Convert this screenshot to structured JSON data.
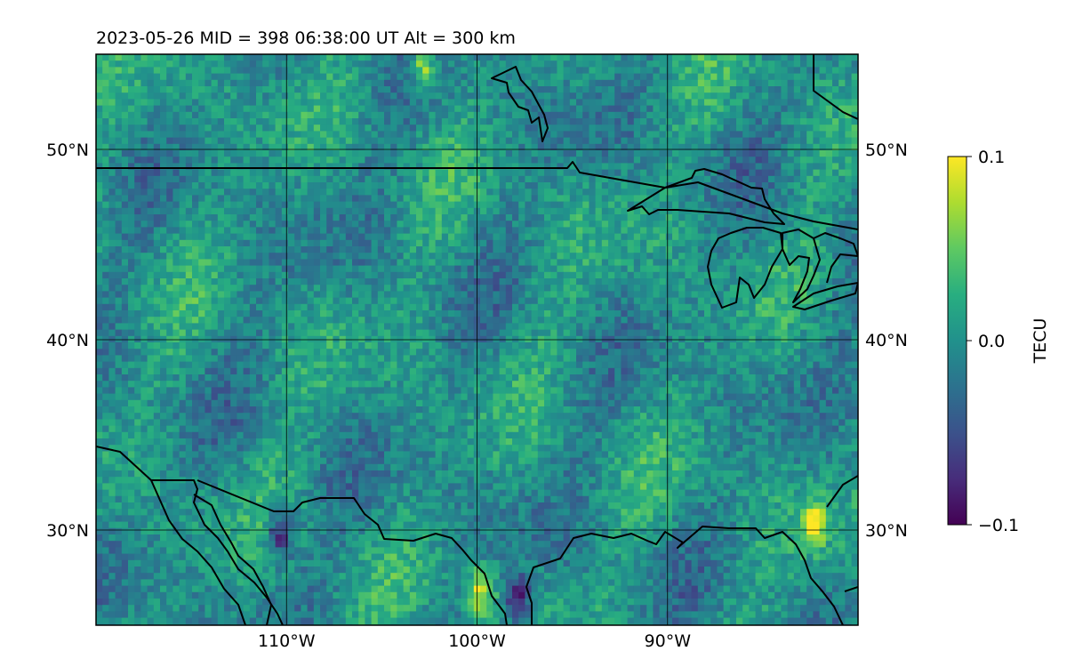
{
  "title": "2023-05-26  MID = 398    06:38:00  UT  Alt = 300 km",
  "map": {
    "lon_range": [
      -120,
      -80
    ],
    "lat_range": [
      25,
      55
    ],
    "lon_ticks": [
      {
        "value": -110,
        "label": "110°W"
      },
      {
        "value": -100,
        "label": "100°W"
      },
      {
        "value": -90,
        "label": "90°W"
      }
    ],
    "lat_ticks": [
      {
        "value": 50,
        "label": "50°N"
      },
      {
        "value": 40,
        "label": "40°N"
      },
      {
        "value": 30,
        "label": "30°N"
      }
    ],
    "gridlines": true,
    "boundaries": "coastlines and country borders"
  },
  "colorbar": {
    "label": "TECU",
    "colormap": "viridis",
    "min": -0.1,
    "max": 0.1,
    "ticks": [
      {
        "value": 0.1,
        "label": "0.1"
      },
      {
        "value": 0.0,
        "label": "0.0"
      },
      {
        "value": -0.1,
        "label": "−0.1"
      }
    ],
    "extend": "both"
  },
  "chart_data": {
    "type": "heatmap",
    "title": "2023-05-26  MID = 398    06:38:00  UT  Alt = 300 km",
    "value_label": "TECU",
    "value_range": [
      -0.1,
      0.1
    ],
    "x_label": "",
    "y_label": "",
    "highlights": [
      {
        "lon": -82.5,
        "lat": 30.5,
        "value": 0.1
      },
      {
        "lon": -100.0,
        "lat": 27.0,
        "value": 0.1
      },
      {
        "lon": -110.5,
        "lat": 30.0,
        "value": -0.1
      },
      {
        "lon": -98.0,
        "lat": 26.5,
        "value": -0.1
      },
      {
        "lon": -103.0,
        "lat": 54.5,
        "value": 0.1
      }
    ]
  }
}
